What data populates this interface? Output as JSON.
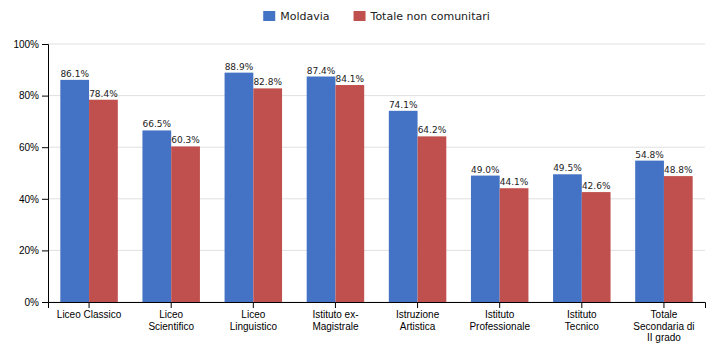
{
  "chart_data": {
    "type": "bar",
    "categories": [
      "Liceo Classico",
      "Liceo\nScientifico",
      "Liceo\nLinguistico",
      "Istituto ex-\nMagistrale",
      "Istruzione\nArtistica",
      "Istituto\nProfessionale",
      "Istituto\nTecnico",
      "Totale\nSecondaria di\nII grado"
    ],
    "series": [
      {
        "name": "Moldavia",
        "color": "#4472C4",
        "values": [
          86.1,
          66.5,
          88.9,
          87.4,
          74.1,
          49.0,
          49.5,
          54.8
        ],
        "value_labels": [
          "86.1%",
          "66.5%",
          "88.9%",
          "87.4%",
          "74.1%",
          "49.0%",
          "49.5%",
          "54.8%"
        ]
      },
      {
        "name": "Totale non comunitari",
        "color": "#C0504D",
        "values": [
          78.4,
          60.3,
          82.8,
          84.1,
          64.2,
          44.1,
          42.6,
          48.8
        ],
        "value_labels": [
          "78.4%",
          "60.3%",
          "82.8%",
          "84.1%",
          "64.2%",
          "44.1%",
          "42.6%",
          "48.8%"
        ]
      }
    ],
    "ylim": [
      0,
      100
    ],
    "yticks": [
      {
        "value": 0,
        "label": "0%"
      },
      {
        "value": 20,
        "label": "20%"
      },
      {
        "value": 40,
        "label": "40%"
      },
      {
        "value": 60,
        "label": "60%"
      },
      {
        "value": 80,
        "label": "80%"
      },
      {
        "value": 100,
        "label": "100%"
      }
    ],
    "grid": true,
    "legend": "top",
    "data_labels": true
  }
}
